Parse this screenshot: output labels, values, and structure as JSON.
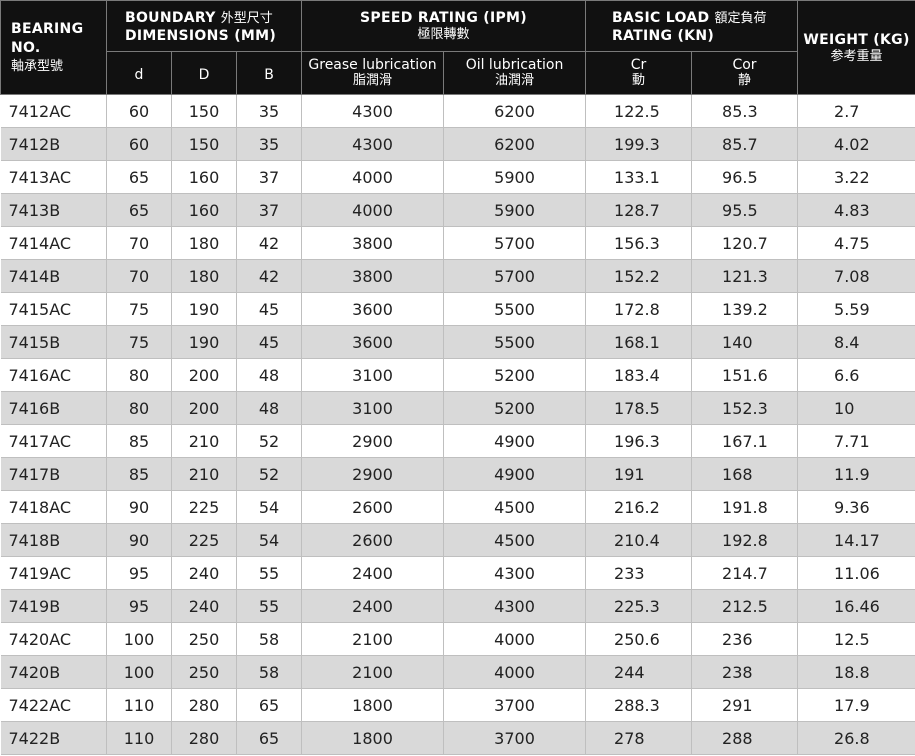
{
  "header": {
    "bearing_no": "BEARING NO.",
    "bearing_no_cn": "軸承型號",
    "boundary": "BOUNDARY",
    "boundary_cn": "外型尺寸",
    "dimensions": "DIMENSIONS (MM)",
    "speed": "SPEED RATING (IPM)",
    "speed_cn": "極限轉數",
    "basic_load": "BASIC LOAD",
    "basic_load_cn": "額定負荷",
    "load_rating": "RATING (KN)",
    "weight": "WEIGHT (KG)",
    "weight_cn": "参考重量",
    "d": "d",
    "D": "D",
    "B": "B",
    "grease": "Grease lubrication",
    "grease_cn": "脂潤滑",
    "oil": "Oil lubrication",
    "oil_cn": "油潤滑",
    "cr": "Cr",
    "cr_cn": "動",
    "cor": "Cor",
    "cor_cn": "静"
  },
  "rows": [
    [
      "7412AC",
      "60",
      "150",
      "35",
      "4300",
      "6200",
      "122.5",
      "85.3",
      "2.7"
    ],
    [
      "7412B",
      "60",
      "150",
      "35",
      "4300",
      "6200",
      "199.3",
      "85.7",
      "4.02"
    ],
    [
      "7413AC",
      "65",
      "160",
      "37",
      "4000",
      "5900",
      "133.1",
      "96.5",
      "3.22"
    ],
    [
      "7413B",
      "65",
      "160",
      "37",
      "4000",
      "5900",
      "128.7",
      "95.5",
      "4.83"
    ],
    [
      "7414AC",
      "70",
      "180",
      "42",
      "3800",
      "5700",
      "156.3",
      "120.7",
      "4.75"
    ],
    [
      "7414B",
      "70",
      "180",
      "42",
      "3800",
      "5700",
      "152.2",
      "121.3",
      "7.08"
    ],
    [
      "7415AC",
      "75",
      "190",
      "45",
      "3600",
      "5500",
      "172.8",
      "139.2",
      "5.59"
    ],
    [
      "7415B",
      "75",
      "190",
      "45",
      "3600",
      "5500",
      "168.1",
      "140",
      "8.4"
    ],
    [
      "7416AC",
      "80",
      "200",
      "48",
      "3100",
      "5200",
      "183.4",
      "151.6",
      "6.6"
    ],
    [
      "7416B",
      "80",
      "200",
      "48",
      "3100",
      "5200",
      "178.5",
      "152.3",
      "10"
    ],
    [
      "7417AC",
      "85",
      "210",
      "52",
      "2900",
      "4900",
      "196.3",
      "167.1",
      "7.71"
    ],
    [
      "7417B",
      "85",
      "210",
      "52",
      "2900",
      "4900",
      "191",
      "168",
      "11.9"
    ],
    [
      "7418AC",
      "90",
      "225",
      "54",
      "2600",
      "4500",
      "216.2",
      "191.8",
      "9.36"
    ],
    [
      "7418B",
      "90",
      "225",
      "54",
      "2600",
      "4500",
      "210.4",
      "192.8",
      "14.17"
    ],
    [
      "7419AC",
      "95",
      "240",
      "55",
      "2400",
      "4300",
      "233",
      "214.7",
      "11.06"
    ],
    [
      "7419B",
      "95",
      "240",
      "55",
      "2400",
      "4300",
      "225.3",
      "212.5",
      "16.46"
    ],
    [
      "7420AC",
      "100",
      "250",
      "58",
      "2100",
      "4000",
      "250.6",
      "236",
      "12.5"
    ],
    [
      "7420B",
      "100",
      "250",
      "58",
      "2100",
      "4000",
      "244",
      "238",
      "18.8"
    ],
    [
      "7422AC",
      "110",
      "280",
      "65",
      "1800",
      "3700",
      "288.3",
      "291",
      "17.9"
    ],
    [
      "7422B",
      "110",
      "280",
      "65",
      "1800",
      "3700",
      "278",
      "288",
      "26.8"
    ]
  ]
}
